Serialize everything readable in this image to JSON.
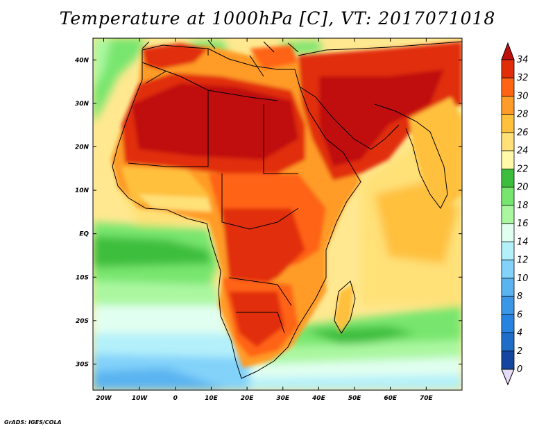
{
  "title": "Temperature at 1000hPa [C], VT: 2017071018",
  "credit": "GrADS: IGES/COLA",
  "map": {
    "projection": "lat-lon",
    "lon_range": [
      -23,
      80
    ],
    "lat_range": [
      -36,
      45
    ],
    "lat_ticks": [
      {
        "value": 40,
        "label": "40N"
      },
      {
        "value": 30,
        "label": "30N"
      },
      {
        "value": 20,
        "label": "20N"
      },
      {
        "value": 10,
        "label": "10N"
      },
      {
        "value": 0,
        "label": "EQ"
      },
      {
        "value": -10,
        "label": "10S"
      },
      {
        "value": -20,
        "label": "20S"
      },
      {
        "value": -30,
        "label": "30S"
      }
    ],
    "lon_ticks": [
      {
        "value": -20,
        "label": "20W"
      },
      {
        "value": -10,
        "label": "10W"
      },
      {
        "value": 0,
        "label": "0"
      },
      {
        "value": 10,
        "label": "10E"
      },
      {
        "value": 20,
        "label": "20E"
      },
      {
        "value": 30,
        "label": "30E"
      },
      {
        "value": 40,
        "label": "40E"
      },
      {
        "value": 50,
        "label": "50E"
      },
      {
        "value": 60,
        "label": "60E"
      },
      {
        "value": 70,
        "label": "70E"
      }
    ],
    "ocean_color": "#f5e9a0"
  },
  "colorbar": {
    "levels": [
      0,
      2,
      4,
      6,
      8,
      10,
      12,
      14,
      16,
      18,
      20,
      22,
      24,
      26,
      28,
      30,
      32,
      34
    ],
    "colors": [
      "#0a1e6e",
      "#1446a0",
      "#1e6ec8",
      "#2882e0",
      "#3c96e6",
      "#5ab4f0",
      "#82d2fa",
      "#b4f0fa",
      "#e1fff0",
      "#aaf7a0",
      "#78e66e",
      "#3cbe3c",
      "#fffaaa",
      "#ffe178",
      "#ffc03c",
      "#ff9b28",
      "#ff6414",
      "#e12d0a",
      "#c0100a"
    ],
    "under_color": "#e6dcf5"
  }
}
